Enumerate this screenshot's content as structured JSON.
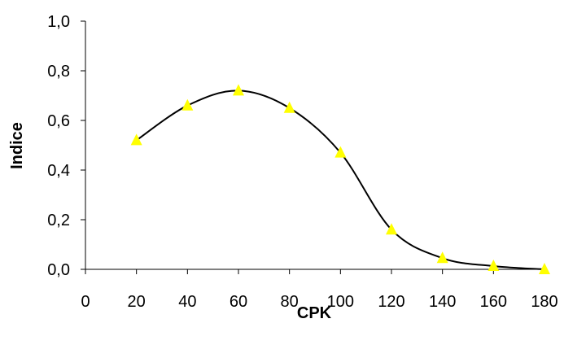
{
  "chart_data": {
    "type": "line",
    "title": "",
    "xlabel": "CPK",
    "ylabel": "Indice",
    "xlim": [
      0,
      180
    ],
    "ylim": [
      0,
      1.0
    ],
    "x_ticks": [
      "0",
      "20",
      "40",
      "60",
      "80",
      "100",
      "120",
      "140",
      "160",
      "180"
    ],
    "x_tick_values": [
      0,
      20,
      40,
      60,
      80,
      100,
      120,
      140,
      160,
      180
    ],
    "y_ticks": [
      "0,0",
      "0,2",
      "0,4",
      "0,6",
      "0,8",
      "1,0"
    ],
    "y_tick_values": [
      0,
      0.2,
      0.4,
      0.6,
      0.8,
      1.0
    ],
    "grid": false,
    "legend": "none",
    "line_color": "#000000",
    "marker": "triangle",
    "marker_color": "#FFFF00",
    "series": [
      {
        "x": [
          20,
          40,
          60,
          80,
          100,
          120,
          140,
          160,
          180
        ],
        "y": [
          0.52,
          0.66,
          0.72,
          0.65,
          0.47,
          0.16,
          0.045,
          0.013,
          0.0
        ]
      }
    ]
  }
}
